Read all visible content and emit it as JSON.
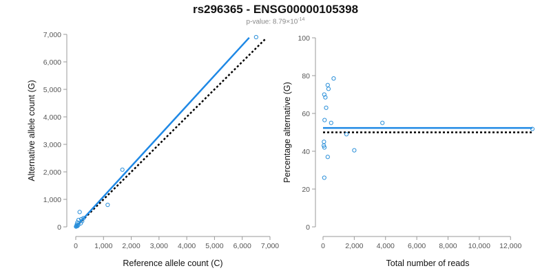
{
  "title": "rs296365 - ENSG00000105398",
  "subtitle": {
    "prefix": "p-value: 8.79×10",
    "exponent": "-14"
  },
  "colors": {
    "points": "#2a8fd9",
    "fit_line": "#1e88e5",
    "reference_line": "#000000",
    "axis": "#999999",
    "tick_text": "#555555"
  },
  "chart_data": [
    {
      "type": "scatter",
      "xlabel": "Reference allele count (C)",
      "ylabel": "Alternative allele count (G)",
      "xlim": [
        0,
        7000
      ],
      "ylim": [
        0,
        7000
      ],
      "xticks": [
        0,
        1000,
        2000,
        3000,
        4000,
        5000,
        6000,
        7000
      ],
      "yticks": [
        0,
        1000,
        2000,
        3000,
        4000,
        5000,
        6000,
        7000
      ],
      "xtick_labels": [
        "0",
        "1,000",
        "2,000",
        "3,000",
        "4,000",
        "5,000",
        "6,000",
        "7,000"
      ],
      "ytick_labels": [
        "0",
        "1,000",
        "2,000",
        "3,000",
        "4,000",
        "5,000",
        "6,000",
        "7,000"
      ],
      "points": [
        {
          "x": 6500,
          "y": 6900
        },
        {
          "x": 1680,
          "y": 2080
        },
        {
          "x": 1150,
          "y": 800
        },
        {
          "x": 140,
          "y": 540
        },
        {
          "x": 280,
          "y": 320
        },
        {
          "x": 200,
          "y": 280
        },
        {
          "x": 100,
          "y": 250
        },
        {
          "x": 230,
          "y": 210
        },
        {
          "x": 60,
          "y": 160
        },
        {
          "x": 180,
          "y": 130
        },
        {
          "x": 40,
          "y": 90
        },
        {
          "x": 90,
          "y": 70
        },
        {
          "x": 30,
          "y": 45
        },
        {
          "x": 60,
          "y": 30
        },
        {
          "x": 20,
          "y": 20
        },
        {
          "x": 10,
          "y": 10
        }
      ],
      "fit_line": {
        "x": [
          0,
          6250
        ],
        "y": [
          0,
          6880
        ]
      },
      "reference_line": {
        "x": [
          0,
          6850
        ],
        "y": [
          0,
          6850
        ]
      },
      "grid": false
    },
    {
      "type": "scatter",
      "xlabel": "Total number of reads",
      "ylabel": "Percentage alternative (G)",
      "xlim": [
        0,
        13400
      ],
      "ylim": [
        0,
        100
      ],
      "xticks": [
        0,
        2000,
        4000,
        6000,
        8000,
        10000,
        12000
      ],
      "yticks": [
        0,
        20,
        40,
        60,
        80,
        100
      ],
      "xtick_labels": [
        "0",
        "2,000",
        "4,000",
        "6,000",
        "8,000",
        "10,000",
        "12,000"
      ],
      "ytick_labels": [
        "0",
        "20",
        "40",
        "60",
        "80",
        "100"
      ],
      "points": [
        {
          "x": 680,
          "y": 78.5
        },
        {
          "x": 300,
          "y": 75
        },
        {
          "x": 350,
          "y": 73
        },
        {
          "x": 80,
          "y": 70
        },
        {
          "x": 150,
          "y": 68.5
        },
        {
          "x": 200,
          "y": 63
        },
        {
          "x": 100,
          "y": 56.5
        },
        {
          "x": 520,
          "y": 55
        },
        {
          "x": 3800,
          "y": 55
        },
        {
          "x": 1500,
          "y": 49
        },
        {
          "x": 60,
          "y": 45
        },
        {
          "x": 50,
          "y": 43
        },
        {
          "x": 90,
          "y": 42
        },
        {
          "x": 2000,
          "y": 40.5
        },
        {
          "x": 300,
          "y": 37
        },
        {
          "x": 80,
          "y": 26
        },
        {
          "x": 13400,
          "y": 51.8
        }
      ],
      "fit_line": {
        "x": [
          0,
          13400
        ],
        "y": [
          52.3,
          52.3
        ]
      },
      "reference_line": {
        "x": [
          0,
          13400
        ],
        "y": [
          50,
          50
        ]
      },
      "grid": false
    }
  ]
}
